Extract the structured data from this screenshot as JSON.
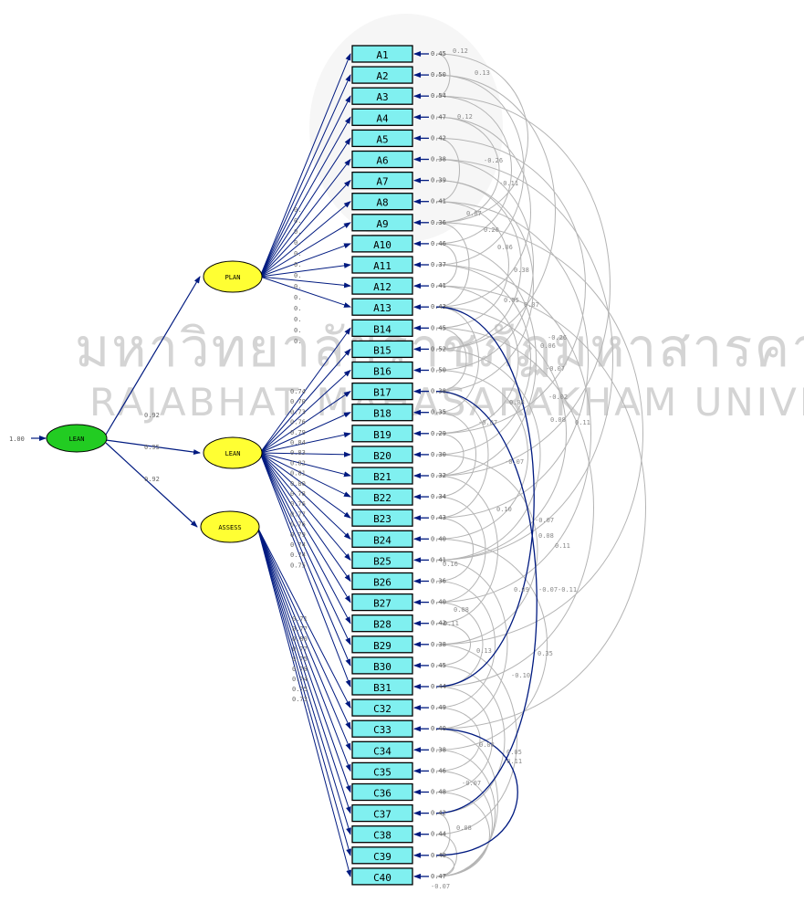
{
  "watermark": {
    "thai": "มหาวิทยาลัยราชภัฏมหาสารคาม",
    "english": "RAJABHAT MAHASARAKHAM UNIVERSITY"
  },
  "colors": {
    "green": "#22cc22",
    "yellow": "#ffff33",
    "cyan": "#80f0f0",
    "path": "#001a80",
    "corr": "#b4b4b4"
  },
  "second_order": {
    "label": "LEAN",
    "variance": "1.00"
  },
  "first_order": [
    {
      "id": "plan",
      "label": "PLAN",
      "loading": "0.92"
    },
    {
      "id": "lean",
      "label": "LEAN",
      "loading": "0.95"
    },
    {
      "id": "assess",
      "label": "ASSESS",
      "loading": "0.92"
    }
  ],
  "indicators": [
    {
      "label": "A1",
      "error": "0.45"
    },
    {
      "label": "A2",
      "error": "0.50"
    },
    {
      "label": "A3",
      "error": "0.54"
    },
    {
      "label": "A4",
      "error": "0.47"
    },
    {
      "label": "A5",
      "error": "0.42"
    },
    {
      "label": "A6",
      "error": "0.38"
    },
    {
      "label": "A7",
      "error": "0.39"
    },
    {
      "label": "A8",
      "error": "0.41"
    },
    {
      "label": "A9",
      "error": "0.36"
    },
    {
      "label": "A10",
      "error": "0.46"
    },
    {
      "label": "A11",
      "error": "0.37"
    },
    {
      "label": "A12",
      "error": "0.41"
    },
    {
      "label": "A13",
      "error": "0.43"
    },
    {
      "label": "B14",
      "error": "0.45"
    },
    {
      "label": "B15",
      "error": "0.52"
    },
    {
      "label": "B16",
      "error": "0.50"
    },
    {
      "label": "B17",
      "error": "0.38"
    },
    {
      "label": "B18",
      "error": "0.35"
    },
    {
      "label": "B19",
      "error": "0.29"
    },
    {
      "label": "B20",
      "error": "0.30"
    },
    {
      "label": "B21",
      "error": "0.32"
    },
    {
      "label": "B22",
      "error": "0.34"
    },
    {
      "label": "B23",
      "error": "0.43"
    },
    {
      "label": "B24",
      "error": "0.40"
    },
    {
      "label": "B25",
      "error": "0.41"
    },
    {
      "label": "B26",
      "error": "0.36"
    },
    {
      "label": "B27",
      "error": "0.40"
    },
    {
      "label": "B28",
      "error": "0.42"
    },
    {
      "label": "B29",
      "error": "0.38"
    },
    {
      "label": "B30",
      "error": "0.45"
    },
    {
      "label": "B31",
      "error": "0.44"
    },
    {
      "label": "C32",
      "error": "0.49"
    },
    {
      "label": "C33",
      "error": "0.40"
    },
    {
      "label": "C34",
      "error": "0.38"
    },
    {
      "label": "C35",
      "error": "0.46"
    },
    {
      "label": "C36",
      "error": "0.48"
    },
    {
      "label": "C37",
      "error": "0.42"
    },
    {
      "label": "C38",
      "error": "0.44"
    },
    {
      "label": "C39",
      "error": "0.40"
    },
    {
      "label": "C40",
      "error": "0.47"
    }
  ],
  "loadings": {
    "plan": [
      "0.",
      "0.",
      "0.",
      "0.",
      "0.",
      "0.",
      "0.",
      "0.",
      "0.",
      "0.",
      "0.",
      "0.",
      "0."
    ],
    "lean": [
      "0.74",
      "0.70",
      "0.73",
      "0.76",
      "0.79",
      "0.84",
      "0.83",
      "0.82",
      "0.81",
      "0.80",
      "0.78",
      "0.76",
      "0.77",
      "0.76",
      "0.79",
      "0.74",
      "0.74",
      "0.75"
    ],
    "assess": [
      "0.71",
      "0.77",
      "0.80",
      "0.77",
      "0.75",
      "0.78",
      "0.74",
      "0.75",
      "0.73"
    ]
  },
  "error_covariances": [
    "0.12",
    "0.13",
    "0.12",
    "-0.26",
    "-0.11",
    "0.07",
    "0.20",
    "0.06",
    "0.38",
    "0.05",
    "0.07",
    "-0.26",
    "0.06",
    "-0.07",
    "-0.02",
    "0.08",
    "0.08",
    "0.11",
    "-0.07",
    "-0.07",
    "0.10",
    "-0.07",
    "0.08",
    "0.11",
    "0.16",
    "0.09",
    "-0.07",
    "-0.11",
    "0.08",
    "0.11",
    "0.13",
    "0.35",
    "-0.10",
    "0.08",
    "0.05",
    "-0.11",
    "-0.07",
    "0.08",
    "-0.07"
  ]
}
